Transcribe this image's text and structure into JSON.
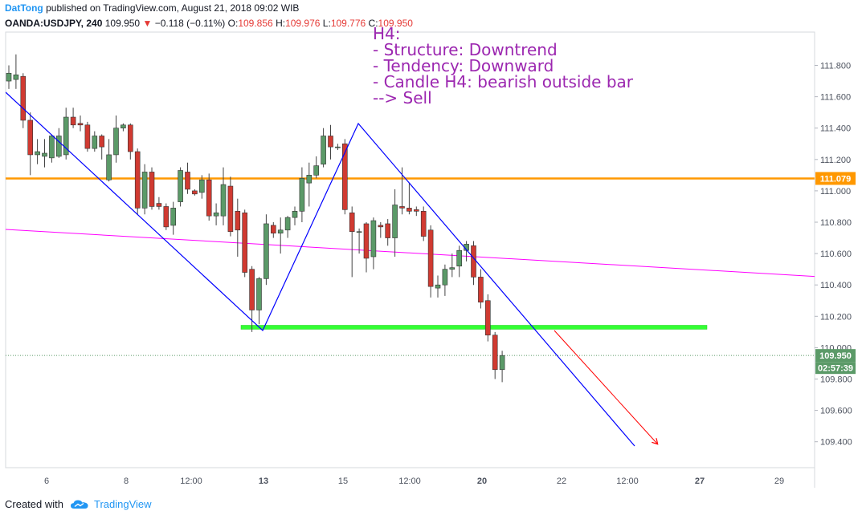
{
  "header": {
    "author": "DatTong",
    "published": "published on TradingView.com, August 21, 2018 09:02 WIB",
    "symbol": "OANDA:USDJPY, 240",
    "last": "109.950",
    "change": "−0.118 (−0.11%)",
    "o_label": "O:",
    "o": "109.856",
    "h_label": "H:",
    "h": "109.976",
    "l_label": "L:",
    "l": "109.776",
    "c_label": "C:",
    "c": "109.950"
  },
  "footer": {
    "created_with": "Created with",
    "brand": "TradingView"
  },
  "colors": {
    "bull": "#5b9a68",
    "bear": "#d03a31",
    "resistance": "#ff9800",
    "support": "#33ff33",
    "trendline": "#0000ff",
    "pinkline": "#ff00ff",
    "arrow": "#ff0000",
    "note": "#9c27b0"
  },
  "chart_data": {
    "type": "candlestick",
    "y_axis_ticks": [
      "111.800",
      "111.600",
      "111.400",
      "111.200",
      "111.000",
      "110.800",
      "110.600",
      "110.400",
      "110.200",
      "110.000",
      "109.800",
      "109.600",
      "109.400"
    ],
    "ylim": [
      109.27,
      111.95
    ],
    "x_axis_ticks": [
      "6",
      "8",
      "12:00",
      "13",
      "15",
      "12:00",
      "20",
      "22",
      "12:00",
      "27",
      "29"
    ],
    "price_labels": {
      "resistance": "111.079",
      "current": "109.950",
      "countdown": "02:57:39"
    },
    "annotation": [
      "H4:",
      "- Structure: Downtrend",
      "- Tendency: Downward",
      "- Candle H4: bearish outside bar",
      "--> Sell"
    ],
    "horizontal_lines": [
      {
        "role": "resistance",
        "price": 111.079
      },
      {
        "role": "support",
        "price": 110.13
      }
    ],
    "candles": [
      {
        "o": 111.7,
        "h": 111.8,
        "l": 111.65,
        "c": 111.75
      },
      {
        "o": 111.71,
        "h": 111.87,
        "l": 111.65,
        "c": 111.74
      },
      {
        "o": 111.73,
        "h": 111.75,
        "l": 111.4,
        "c": 111.45
      },
      {
        "o": 111.45,
        "h": 111.5,
        "l": 111.1,
        "c": 111.23
      },
      {
        "o": 111.23,
        "h": 111.33,
        "l": 111.17,
        "c": 111.25
      },
      {
        "o": 111.22,
        "h": 111.33,
        "l": 111.15,
        "c": 111.24
      },
      {
        "o": 111.21,
        "h": 111.36,
        "l": 111.18,
        "c": 111.35
      },
      {
        "o": 111.22,
        "h": 111.4,
        "l": 111.21,
        "c": 111.35
      },
      {
        "o": 111.23,
        "h": 111.53,
        "l": 111.2,
        "c": 111.47
      },
      {
        "o": 111.47,
        "h": 111.53,
        "l": 111.4,
        "c": 111.42
      },
      {
        "o": 111.43,
        "h": 111.48,
        "l": 111.38,
        "c": 111.42
      },
      {
        "o": 111.42,
        "h": 111.44,
        "l": 111.25,
        "c": 111.27
      },
      {
        "o": 111.27,
        "h": 111.38,
        "l": 111.25,
        "c": 111.35
      },
      {
        "o": 111.35,
        "h": 111.36,
        "l": 111.2,
        "c": 111.28
      },
      {
        "o": 111.07,
        "h": 111.33,
        "l": 111.06,
        "c": 111.23
      },
      {
        "o": 111.23,
        "h": 111.48,
        "l": 111.18,
        "c": 111.4
      },
      {
        "o": 111.4,
        "h": 111.43,
        "l": 111.38,
        "c": 111.42
      },
      {
        "o": 111.42,
        "h": 111.43,
        "l": 111.2,
        "c": 111.25
      },
      {
        "o": 111.25,
        "h": 111.27,
        "l": 110.85,
        "c": 110.89
      },
      {
        "o": 110.89,
        "h": 111.17,
        "l": 110.85,
        "c": 111.12
      },
      {
        "o": 111.12,
        "h": 111.15,
        "l": 110.88,
        "c": 110.9
      },
      {
        "o": 110.92,
        "h": 110.96,
        "l": 110.88,
        "c": 110.9
      },
      {
        "o": 110.9,
        "h": 110.92,
        "l": 110.75,
        "c": 110.77
      },
      {
        "o": 110.78,
        "h": 110.93,
        "l": 110.72,
        "c": 110.89
      },
      {
        "o": 110.93,
        "h": 111.15,
        "l": 110.9,
        "c": 111.13
      },
      {
        "o": 111.12,
        "h": 111.18,
        "l": 110.98,
        "c": 111.01
      },
      {
        "o": 111.0,
        "h": 111.01,
        "l": 110.97,
        "c": 110.98
      },
      {
        "o": 110.99,
        "h": 111.1,
        "l": 110.95,
        "c": 111.07
      },
      {
        "o": 111.07,
        "h": 111.11,
        "l": 110.81,
        "c": 110.84
      },
      {
        "o": 110.84,
        "h": 110.92,
        "l": 110.78,
        "c": 110.86
      },
      {
        "o": 110.84,
        "h": 111.15,
        "l": 110.78,
        "c": 111.04
      },
      {
        "o": 111.03,
        "h": 111.09,
        "l": 110.71,
        "c": 110.74
      },
      {
        "o": 110.87,
        "h": 110.95,
        "l": 110.58,
        "c": 110.75
      },
      {
        "o": 110.86,
        "h": 110.88,
        "l": 110.45,
        "c": 110.48
      },
      {
        "o": 110.5,
        "h": 110.52,
        "l": 110.1,
        "c": 110.24
      },
      {
        "o": 110.24,
        "h": 110.45,
        "l": 110.15,
        "c": 110.44
      },
      {
        "o": 110.44,
        "h": 110.85,
        "l": 110.4,
        "c": 110.79
      },
      {
        "o": 110.78,
        "h": 110.8,
        "l": 110.7,
        "c": 110.73
      },
      {
        "o": 110.73,
        "h": 110.83,
        "l": 110.6,
        "c": 110.75
      },
      {
        "o": 110.75,
        "h": 110.84,
        "l": 110.7,
        "c": 110.83
      },
      {
        "o": 110.83,
        "h": 110.9,
        "l": 110.78,
        "c": 110.87
      },
      {
        "o": 110.87,
        "h": 111.15,
        "l": 110.8,
        "c": 111.08
      },
      {
        "o": 111.05,
        "h": 111.18,
        "l": 110.9,
        "c": 111.1
      },
      {
        "o": 111.1,
        "h": 111.22,
        "l": 111.08,
        "c": 111.16
      },
      {
        "o": 111.17,
        "h": 111.4,
        "l": 111.15,
        "c": 111.35
      },
      {
        "o": 111.35,
        "h": 111.42,
        "l": 111.2,
        "c": 111.28
      },
      {
        "o": 111.28,
        "h": 111.3,
        "l": 111.26,
        "c": 111.28
      },
      {
        "o": 111.3,
        "h": 111.33,
        "l": 110.85,
        "c": 110.88
      },
      {
        "o": 110.86,
        "h": 110.9,
        "l": 110.45,
        "c": 110.74
      },
      {
        "o": 110.74,
        "h": 110.76,
        "l": 110.6,
        "c": 110.74
      },
      {
        "o": 110.79,
        "h": 110.8,
        "l": 110.48,
        "c": 110.57
      },
      {
        "o": 110.58,
        "h": 110.83,
        "l": 110.5,
        "c": 110.81
      },
      {
        "o": 110.78,
        "h": 110.8,
        "l": 110.7,
        "c": 110.77
      },
      {
        "o": 110.79,
        "h": 110.82,
        "l": 110.65,
        "c": 110.7
      },
      {
        "o": 110.7,
        "h": 111.01,
        "l": 110.58,
        "c": 110.91
      },
      {
        "o": 110.9,
        "h": 111.15,
        "l": 110.85,
        "c": 110.89
      },
      {
        "o": 110.89,
        "h": 111.05,
        "l": 110.85,
        "c": 110.87
      },
      {
        "o": 110.88,
        "h": 110.9,
        "l": 110.84,
        "c": 110.87
      },
      {
        "o": 110.87,
        "h": 110.9,
        "l": 110.68,
        "c": 110.71
      },
      {
        "o": 110.75,
        "h": 110.78,
        "l": 110.32,
        "c": 110.39
      },
      {
        "o": 110.38,
        "h": 110.46,
        "l": 110.32,
        "c": 110.4
      },
      {
        "o": 110.4,
        "h": 110.53,
        "l": 110.33,
        "c": 110.5
      },
      {
        "o": 110.5,
        "h": 110.6,
        "l": 110.45,
        "c": 110.51
      },
      {
        "o": 110.52,
        "h": 110.65,
        "l": 110.45,
        "c": 110.62
      },
      {
        "o": 110.62,
        "h": 110.68,
        "l": 110.55,
        "c": 110.66
      },
      {
        "o": 110.65,
        "h": 110.68,
        "l": 110.4,
        "c": 110.45
      },
      {
        "o": 110.45,
        "h": 110.5,
        "l": 110.25,
        "c": 110.29
      },
      {
        "o": 110.3,
        "h": 110.34,
        "l": 110.04,
        "c": 110.08
      },
      {
        "o": 110.08,
        "h": 110.1,
        "l": 109.8,
        "c": 109.86
      },
      {
        "o": 109.86,
        "h": 109.98,
        "l": 109.78,
        "c": 109.95
      }
    ]
  }
}
